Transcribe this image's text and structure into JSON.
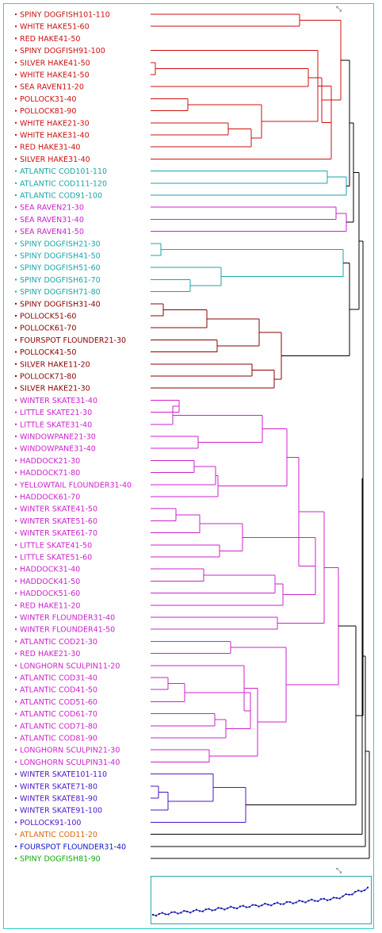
{
  "colors": {
    "red": "#cc1111",
    "cyan": "#1aa6a6",
    "magenta": "#cc22cc",
    "maroon": "#8b0000",
    "purple": "#4b16c8",
    "orange": "#dd6611",
    "blue": "#1111cc",
    "green": "#11aa11",
    "black": "#000000",
    "frame": "#33cccc"
  },
  "icons": {
    "top": "expand-icon",
    "inset": "expand-icon"
  },
  "leaves": [
    {
      "label": "SPINY DOGFISH101-110",
      "color": "red"
    },
    {
      "label": "WHITE HAKE51-60",
      "color": "red"
    },
    {
      "label": "RED HAKE41-50",
      "color": "red"
    },
    {
      "label": "SPINY DOGFISH91-100",
      "color": "red"
    },
    {
      "label": "SILVER HAKE41-50",
      "color": "red"
    },
    {
      "label": "WHITE HAKE41-50",
      "color": "red"
    },
    {
      "label": "SEA RAVEN11-20",
      "color": "red"
    },
    {
      "label": "POLLOCK31-40",
      "color": "red"
    },
    {
      "label": "POLLOCK81-90",
      "color": "red"
    },
    {
      "label": "WHITE HAKE21-30",
      "color": "red"
    },
    {
      "label": "WHITE HAKE31-40",
      "color": "red"
    },
    {
      "label": "RED HAKE31-40",
      "color": "red"
    },
    {
      "label": "SILVER HAKE31-40",
      "color": "red"
    },
    {
      "label": "ATLANTIC COD101-110",
      "color": "cyan"
    },
    {
      "label": "ATLANTIC COD111-120",
      "color": "cyan"
    },
    {
      "label": "ATLANTIC COD91-100",
      "color": "cyan"
    },
    {
      "label": "SEA RAVEN21-30",
      "color": "magenta"
    },
    {
      "label": "SEA RAVEN31-40",
      "color": "magenta"
    },
    {
      "label": "SEA RAVEN41-50",
      "color": "magenta"
    },
    {
      "label": "SPINY DOGFISH21-30",
      "color": "cyan"
    },
    {
      "label": "SPINY DOGFISH41-50",
      "color": "cyan"
    },
    {
      "label": "SPINY DOGFISH51-60",
      "color": "cyan"
    },
    {
      "label": "SPINY DOGFISH61-70",
      "color": "cyan"
    },
    {
      "label": "SPINY DOGFISH71-80",
      "color": "cyan"
    },
    {
      "label": "SPINY DOGFISH31-40",
      "color": "maroon"
    },
    {
      "label": "POLLOCK51-60",
      "color": "maroon"
    },
    {
      "label": "POLLOCK61-70",
      "color": "maroon"
    },
    {
      "label": "FOURSPOT FLOUNDER21-30",
      "color": "maroon"
    },
    {
      "label": "POLLOCK41-50",
      "color": "maroon"
    },
    {
      "label": "SILVER HAKE11-20",
      "color": "maroon"
    },
    {
      "label": "POLLOCK71-80",
      "color": "maroon"
    },
    {
      "label": "SILVER HAKE21-30",
      "color": "maroon"
    },
    {
      "label": "WINTER SKATE31-40",
      "color": "magenta"
    },
    {
      "label": "LITTLE SKATE21-30",
      "color": "magenta"
    },
    {
      "label": "LITTLE SKATE31-40",
      "color": "magenta"
    },
    {
      "label": "WINDOWPANE21-30",
      "color": "magenta"
    },
    {
      "label": "WINDOWPANE31-40",
      "color": "magenta"
    },
    {
      "label": "HADDOCK21-30",
      "color": "magenta"
    },
    {
      "label": "HADDOCK71-80",
      "color": "magenta"
    },
    {
      "label": "YELLOWTAIL FLOUNDER31-40",
      "color": "magenta"
    },
    {
      "label": "HADDOCK61-70",
      "color": "magenta"
    },
    {
      "label": "WINTER SKATE41-50",
      "color": "magenta"
    },
    {
      "label": "WINTER SKATE51-60",
      "color": "magenta"
    },
    {
      "label": "WINTER SKATE61-70",
      "color": "magenta"
    },
    {
      "label": "LITTLE SKATE41-50",
      "color": "magenta"
    },
    {
      "label": "LITTLE SKATE51-60",
      "color": "magenta"
    },
    {
      "label": "HADDOCK31-40",
      "color": "magenta"
    },
    {
      "label": "HADDOCK41-50",
      "color": "magenta"
    },
    {
      "label": "HADDOCK51-60",
      "color": "magenta"
    },
    {
      "label": "RED HAKE11-20",
      "color": "magenta"
    },
    {
      "label": "WINTER FLOUNDER31-40",
      "color": "magenta"
    },
    {
      "label": "WINTER FLOUNDER41-50",
      "color": "magenta"
    },
    {
      "label": "ATLANTIC COD21-30",
      "color": "magenta"
    },
    {
      "label": "RED HAKE21-30",
      "color": "magenta"
    },
    {
      "label": "LONGHORN SCULPIN11-20",
      "color": "magenta"
    },
    {
      "label": "ATLANTIC COD31-40",
      "color": "magenta"
    },
    {
      "label": "ATLANTIC COD41-50",
      "color": "magenta"
    },
    {
      "label": "ATLANTIC COD51-60",
      "color": "magenta"
    },
    {
      "label": "ATLANTIC COD61-70",
      "color": "magenta"
    },
    {
      "label": "ATLANTIC COD71-80",
      "color": "magenta"
    },
    {
      "label": "ATLANTIC COD81-90",
      "color": "magenta"
    },
    {
      "label": "LONGHORN SCULPIN21-30",
      "color": "magenta"
    },
    {
      "label": "LONGHORN SCULPIN31-40",
      "color": "magenta"
    },
    {
      "label": "WINTER SKATE101-110",
      "color": "purple"
    },
    {
      "label": "WINTER SKATE71-80",
      "color": "purple"
    },
    {
      "label": "WINTER SKATE81-90",
      "color": "purple"
    },
    {
      "label": "WINTER SKATE91-100",
      "color": "purple"
    },
    {
      "label": "POLLOCK91-100",
      "color": "purple"
    },
    {
      "label": "ATLANTIC COD11-20",
      "color": "orange"
    },
    {
      "label": "FOURSPOT FLOUNDER31-40",
      "color": "blue"
    },
    {
      "label": "SPINY DOGFISH81-90",
      "color": "green"
    }
  ]
}
